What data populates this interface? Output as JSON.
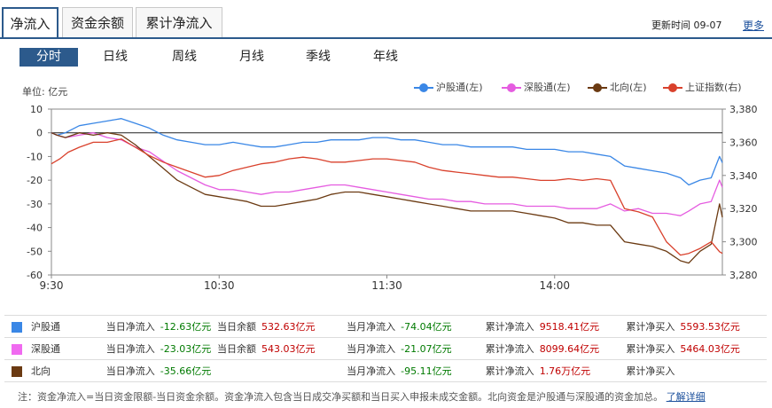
{
  "tabs": [
    "净流入",
    "资金余额",
    "累计净流入"
  ],
  "header": {
    "update_label": "更新时间",
    "update_time": "09-07",
    "more": "更多"
  },
  "periods": [
    "分时",
    "日线",
    "周线",
    "月线",
    "季线",
    "年线"
  ],
  "unit_label": "单位: 亿元",
  "legend": [
    {
      "label": "沪股通(左)",
      "color": "#3a87e6"
    },
    {
      "label": "深股通(左)",
      "color": "#e55ce0"
    },
    {
      "label": "北向(左)",
      "color": "#6b3a12"
    },
    {
      "label": "上证指数(右)",
      "color": "#d9412c"
    }
  ],
  "colors": {
    "accent": "#2c5a8c",
    "up": "#c00000",
    "down": "#007a00",
    "link": "#1a4f9c"
  },
  "chart_data": {
    "type": "line",
    "x_ticks": [
      "9:30",
      "10:30",
      "11:30",
      "14:00"
    ],
    "y_left": {
      "ticks": [
        "10",
        "0",
        "-10",
        "-20",
        "-30",
        "-40",
        "-50",
        "-60"
      ],
      "range": [
        -60,
        10
      ]
    },
    "y_right": {
      "ticks": [
        "3,380",
        "3,360",
        "3,340",
        "3,320",
        "3,300",
        "3,280"
      ],
      "range": [
        3280,
        3380
      ]
    },
    "x_range": [
      0,
      240
    ],
    "series": [
      {
        "name": "沪股通",
        "axis": "left",
        "color": "#3a87e6",
        "points": [
          [
            0,
            0
          ],
          [
            2,
            -1
          ],
          [
            5,
            0
          ],
          [
            10,
            3
          ],
          [
            15,
            4
          ],
          [
            20,
            5
          ],
          [
            25,
            6
          ],
          [
            30,
            4
          ],
          [
            35,
            2
          ],
          [
            40,
            -1
          ],
          [
            45,
            -3
          ],
          [
            50,
            -4
          ],
          [
            55,
            -5
          ],
          [
            60,
            -5
          ],
          [
            65,
            -4
          ],
          [
            70,
            -5
          ],
          [
            75,
            -6
          ],
          [
            80,
            -6
          ],
          [
            85,
            -5
          ],
          [
            90,
            -4
          ],
          [
            95,
            -4
          ],
          [
            100,
            -3
          ],
          [
            105,
            -3
          ],
          [
            110,
            -3
          ],
          [
            115,
            -2
          ],
          [
            120,
            -2
          ],
          [
            125,
            -3
          ],
          [
            130,
            -3
          ],
          [
            135,
            -4
          ],
          [
            140,
            -5
          ],
          [
            145,
            -5
          ],
          [
            150,
            -6
          ],
          [
            155,
            -6
          ],
          [
            160,
            -6
          ],
          [
            165,
            -6
          ],
          [
            170,
            -7
          ],
          [
            175,
            -7
          ],
          [
            180,
            -7
          ],
          [
            185,
            -8
          ],
          [
            190,
            -8
          ],
          [
            195,
            -9
          ],
          [
            200,
            -10
          ],
          [
            205,
            -14
          ],
          [
            210,
            -15
          ],
          [
            215,
            -16
          ],
          [
            220,
            -17
          ],
          [
            225,
            -19
          ],
          [
            228,
            -22
          ],
          [
            232,
            -20
          ],
          [
            236,
            -19
          ],
          [
            239,
            -10
          ],
          [
            240,
            -12.63
          ]
        ]
      },
      {
        "name": "深股通",
        "axis": "left",
        "color": "#e55ce0",
        "points": [
          [
            0,
            0
          ],
          [
            2,
            -1
          ],
          [
            5,
            -2
          ],
          [
            10,
            -1
          ],
          [
            15,
            0
          ],
          [
            20,
            -2
          ],
          [
            25,
            -3
          ],
          [
            30,
            -6
          ],
          [
            35,
            -8
          ],
          [
            40,
            -12
          ],
          [
            45,
            -16
          ],
          [
            50,
            -19
          ],
          [
            55,
            -22
          ],
          [
            60,
            -24
          ],
          [
            65,
            -24
          ],
          [
            70,
            -25
          ],
          [
            75,
            -26
          ],
          [
            80,
            -25
          ],
          [
            85,
            -25
          ],
          [
            90,
            -24
          ],
          [
            95,
            -23
          ],
          [
            100,
            -22
          ],
          [
            105,
            -22
          ],
          [
            110,
            -23
          ],
          [
            115,
            -24
          ],
          [
            120,
            -25
          ],
          [
            125,
            -26
          ],
          [
            130,
            -27
          ],
          [
            135,
            -28
          ],
          [
            140,
            -28
          ],
          [
            145,
            -29
          ],
          [
            150,
            -29
          ],
          [
            155,
            -30
          ],
          [
            160,
            -30
          ],
          [
            165,
            -30
          ],
          [
            170,
            -31
          ],
          [
            175,
            -31
          ],
          [
            180,
            -31
          ],
          [
            185,
            -32
          ],
          [
            190,
            -32
          ],
          [
            195,
            -32
          ],
          [
            200,
            -30
          ],
          [
            205,
            -33
          ],
          [
            210,
            -32
          ],
          [
            215,
            -34
          ],
          [
            220,
            -34
          ],
          [
            225,
            -35
          ],
          [
            228,
            -33
          ],
          [
            232,
            -30
          ],
          [
            236,
            -29
          ],
          [
            239,
            -20
          ],
          [
            240,
            -23.03
          ]
        ]
      },
      {
        "name": "北向",
        "axis": "left",
        "color": "#6b3a12",
        "points": [
          [
            0,
            0
          ],
          [
            2,
            -1
          ],
          [
            5,
            -2
          ],
          [
            10,
            0
          ],
          [
            15,
            -1
          ],
          [
            20,
            0
          ],
          [
            25,
            -1
          ],
          [
            30,
            -5
          ],
          [
            35,
            -10
          ],
          [
            40,
            -15
          ],
          [
            45,
            -20
          ],
          [
            50,
            -23
          ],
          [
            55,
            -26
          ],
          [
            60,
            -27
          ],
          [
            65,
            -28
          ],
          [
            70,
            -29
          ],
          [
            75,
            -31
          ],
          [
            80,
            -31
          ],
          [
            85,
            -30
          ],
          [
            90,
            -29
          ],
          [
            95,
            -28
          ],
          [
            100,
            -26
          ],
          [
            105,
            -25
          ],
          [
            110,
            -25
          ],
          [
            115,
            -26
          ],
          [
            120,
            -27
          ],
          [
            125,
            -28
          ],
          [
            130,
            -29
          ],
          [
            135,
            -30
          ],
          [
            140,
            -31
          ],
          [
            145,
            -32
          ],
          [
            150,
            -33
          ],
          [
            155,
            -33
          ],
          [
            160,
            -33
          ],
          [
            165,
            -33
          ],
          [
            170,
            -34
          ],
          [
            175,
            -35
          ],
          [
            180,
            -36
          ],
          [
            185,
            -38
          ],
          [
            190,
            -38
          ],
          [
            195,
            -39
          ],
          [
            200,
            -39
          ],
          [
            205,
            -46
          ],
          [
            210,
            -47
          ],
          [
            215,
            -48
          ],
          [
            220,
            -50
          ],
          [
            225,
            -54
          ],
          [
            228,
            -55
          ],
          [
            232,
            -50
          ],
          [
            236,
            -47
          ],
          [
            239,
            -30
          ],
          [
            240,
            -35.66
          ]
        ]
      },
      {
        "name": "上证指数",
        "axis": "right",
        "color": "#d9412c",
        "points": [
          [
            0,
            3347
          ],
          [
            3,
            3350
          ],
          [
            6,
            3354
          ],
          [
            10,
            3357
          ],
          [
            15,
            3360
          ],
          [
            20,
            3360
          ],
          [
            25,
            3362
          ],
          [
            30,
            3357
          ],
          [
            35,
            3352
          ],
          [
            40,
            3348
          ],
          [
            45,
            3345
          ],
          [
            50,
            3342
          ],
          [
            55,
            3339
          ],
          [
            60,
            3340
          ],
          [
            65,
            3343
          ],
          [
            70,
            3345
          ],
          [
            75,
            3347
          ],
          [
            80,
            3348
          ],
          [
            85,
            3350
          ],
          [
            90,
            3351
          ],
          [
            95,
            3350
          ],
          [
            100,
            3348
          ],
          [
            105,
            3348
          ],
          [
            110,
            3349
          ],
          [
            115,
            3350
          ],
          [
            120,
            3350
          ],
          [
            125,
            3349
          ],
          [
            130,
            3348
          ],
          [
            135,
            3345
          ],
          [
            140,
            3343
          ],
          [
            145,
            3342
          ],
          [
            150,
            3341
          ],
          [
            155,
            3340
          ],
          [
            160,
            3339
          ],
          [
            165,
            3339
          ],
          [
            170,
            3338
          ],
          [
            175,
            3337
          ],
          [
            180,
            3337
          ],
          [
            185,
            3338
          ],
          [
            190,
            3337
          ],
          [
            195,
            3338
          ],
          [
            200,
            3337
          ],
          [
            205,
            3320
          ],
          [
            210,
            3318
          ],
          [
            215,
            3315
          ],
          [
            220,
            3300
          ],
          [
            225,
            3292
          ],
          [
            228,
            3293
          ],
          [
            232,
            3296
          ],
          [
            236,
            3300
          ],
          [
            239,
            3294
          ],
          [
            240,
            3293
          ]
        ]
      }
    ]
  },
  "stats": [
    {
      "name": "沪股通",
      "color": "#3a87e6",
      "cells": [
        {
          "label": "当日净流入",
          "value": "-12.63亿元",
          "tone": "down"
        },
        {
          "label": "当日余额",
          "value": "532.63亿元",
          "tone": "up"
        },
        {
          "label": "当月净流入",
          "value": "-74.04亿元",
          "tone": "down"
        },
        {
          "label": "累计净流入",
          "value": "9518.41亿元",
          "tone": "up"
        },
        {
          "label": "累计净买入",
          "value": "5593.53亿元",
          "tone": "up"
        }
      ]
    },
    {
      "name": "深股通",
      "color": "#f06af0",
      "cells": [
        {
          "label": "当日净流入",
          "value": "-23.03亿元",
          "tone": "down"
        },
        {
          "label": "当日余额",
          "value": "543.03亿元",
          "tone": "up"
        },
        {
          "label": "当月净流入",
          "value": "-21.07亿元",
          "tone": "down"
        },
        {
          "label": "累计净流入",
          "value": "8099.64亿元",
          "tone": "up"
        },
        {
          "label": "累计净买入",
          "value": "5464.03亿元",
          "tone": "up"
        }
      ]
    },
    {
      "name": "北向",
      "color": "#6b3a12",
      "cells": [
        {
          "label": "当日净流入",
          "value": "-35.66亿元",
          "tone": "down"
        },
        {
          "label": "",
          "value": "",
          "tone": ""
        },
        {
          "label": "当月净流入",
          "value": "-95.11亿元",
          "tone": "down"
        },
        {
          "label": "累计净流入",
          "value": "1.76万亿元",
          "tone": "up"
        },
        {
          "label": "累计净买入",
          "value": "",
          "tone": "up"
        }
      ]
    }
  ],
  "note": {
    "text": "注：资金净流入=当日资金限额-当日资金余额。资金净流入包含当日成交净买额和当日买入申报未成交金额。北向资金是沪股通与深股通的资金加总。",
    "link": "了解详细"
  }
}
